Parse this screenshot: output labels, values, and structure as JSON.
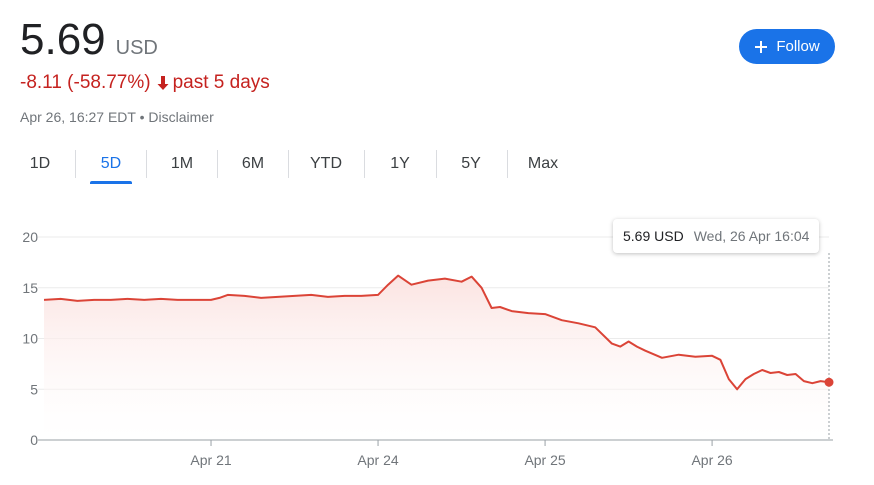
{
  "quote": {
    "price": "5.69",
    "currency": "USD",
    "change": "-8.11 (-58.77%)",
    "period": "past 5 days",
    "timestamp": "Apr 26, 16:27 EDT",
    "separator": "•",
    "disclaimer": "Disclaimer"
  },
  "follow_button": {
    "label": "Follow"
  },
  "range_tabs": [
    "1D",
    "5D",
    "1M",
    "6M",
    "YTD",
    "1Y",
    "5Y",
    "Max"
  ],
  "active_tab": "5D",
  "tooltip": {
    "value": "5.69 USD",
    "time": "Wed, 26 Apr 16:04"
  },
  "colors": {
    "line": "#db4437",
    "fill": "#fbe3e1",
    "accent": "#1a73e8",
    "negative": "#c5221f"
  },
  "chart_data": {
    "type": "area",
    "ylim": [
      0,
      20
    ],
    "y_ticks": [
      "0",
      "5",
      "10",
      "15",
      "20"
    ],
    "x_ticks": [
      {
        "label": "Apr 21",
        "x": 1
      },
      {
        "label": "Apr 24",
        "x": 2
      },
      {
        "label": "Apr 25",
        "x": 3
      },
      {
        "label": "Apr 26",
        "x": 4
      }
    ],
    "xlim": [
      0,
      4.7
    ],
    "series": [
      {
        "x": [
          0,
          0.1,
          0.2,
          0.3,
          0.4,
          0.5,
          0.6,
          0.7,
          0.8,
          0.9,
          1.0,
          1.05,
          1.1,
          1.2,
          1.3,
          1.4,
          1.5,
          1.6,
          1.7,
          1.8,
          1.9,
          2.0,
          2.06,
          2.12,
          2.2,
          2.3,
          2.4,
          2.5,
          2.56,
          2.62,
          2.68,
          2.73,
          2.8,
          2.9,
          3.0,
          3.1,
          3.2,
          3.3,
          3.4,
          3.45,
          3.5,
          3.55,
          3.6,
          3.7,
          3.8,
          3.9,
          4.0,
          4.05,
          4.1,
          4.15,
          4.2,
          4.25,
          4.3,
          4.35,
          4.4,
          4.45,
          4.5,
          4.55,
          4.6,
          4.65,
          4.7
        ],
        "y": [
          13.8,
          13.9,
          13.7,
          13.8,
          13.8,
          13.9,
          13.8,
          13.9,
          13.8,
          13.8,
          13.8,
          14.0,
          14.3,
          14.2,
          14.0,
          14.1,
          14.2,
          14.3,
          14.1,
          14.2,
          14.2,
          14.3,
          15.3,
          16.2,
          15.3,
          15.7,
          15.9,
          15.6,
          16.1,
          15.0,
          13.0,
          13.1,
          12.7,
          12.5,
          12.4,
          11.8,
          11.5,
          11.1,
          9.5,
          9.2,
          9.7,
          9.2,
          8.8,
          8.1,
          8.4,
          8.2,
          8.3,
          7.9,
          6.0,
          5.0,
          6.0,
          6.5,
          6.9,
          6.6,
          6.7,
          6.4,
          6.5,
          5.8,
          5.6,
          5.8,
          5.69
        ]
      }
    ]
  }
}
